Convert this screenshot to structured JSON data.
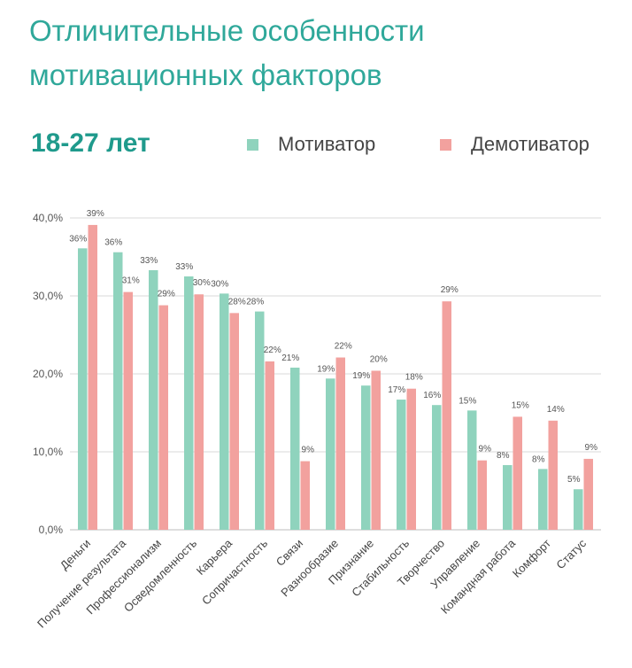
{
  "header": {
    "title_line1": "Отличительные особенности",
    "title_line2": "мотивационных факторов",
    "age_group": "18-27 лет"
  },
  "chart_data": {
    "type": "bar",
    "categories": [
      "Деньги",
      "Получение результата",
      "Профессионализм",
      "Осведомленность",
      "Карьера",
      "Сопричастность",
      "Связи",
      "Разнообразие",
      "Признание",
      "Стабильность",
      "Творчество",
      "Управление",
      "Командная работа",
      "Комфорт",
      "Статус"
    ],
    "series": [
      {
        "name": "Мотиватор",
        "color": "#8fd3bd",
        "values": [
          36.1,
          35.6,
          33.3,
          32.5,
          30.3,
          28.0,
          20.8,
          19.4,
          18.5,
          16.7,
          16.0,
          15.3,
          8.3,
          7.8,
          5.2
        ],
        "labels": [
          "36%",
          "36%",
          "33%",
          "33%",
          "30%",
          "28%",
          "21%",
          "19%",
          "19%",
          "17%",
          "16%",
          "15%",
          "8%",
          "8%",
          "5%"
        ]
      },
      {
        "name": "Демотиватор",
        "color": "#f2a19e",
        "values": [
          39.1,
          30.5,
          28.8,
          30.2,
          27.8,
          21.6,
          8.8,
          22.1,
          20.4,
          18.1,
          29.3,
          8.9,
          14.5,
          14.0,
          9.1
        ],
        "labels": [
          "39%",
          "31%",
          "29%",
          "30%",
          "28%",
          "22%",
          "9%",
          "22%",
          "20%",
          "18%",
          "29%",
          "9%",
          "15%",
          "14%",
          "9%"
        ]
      }
    ],
    "ylim": [
      0,
      40
    ],
    "yticks": [
      "0,0%",
      "10,0%",
      "20,0%",
      "30,0%",
      "40,0%"
    ],
    "grid": true,
    "legend": "top"
  }
}
